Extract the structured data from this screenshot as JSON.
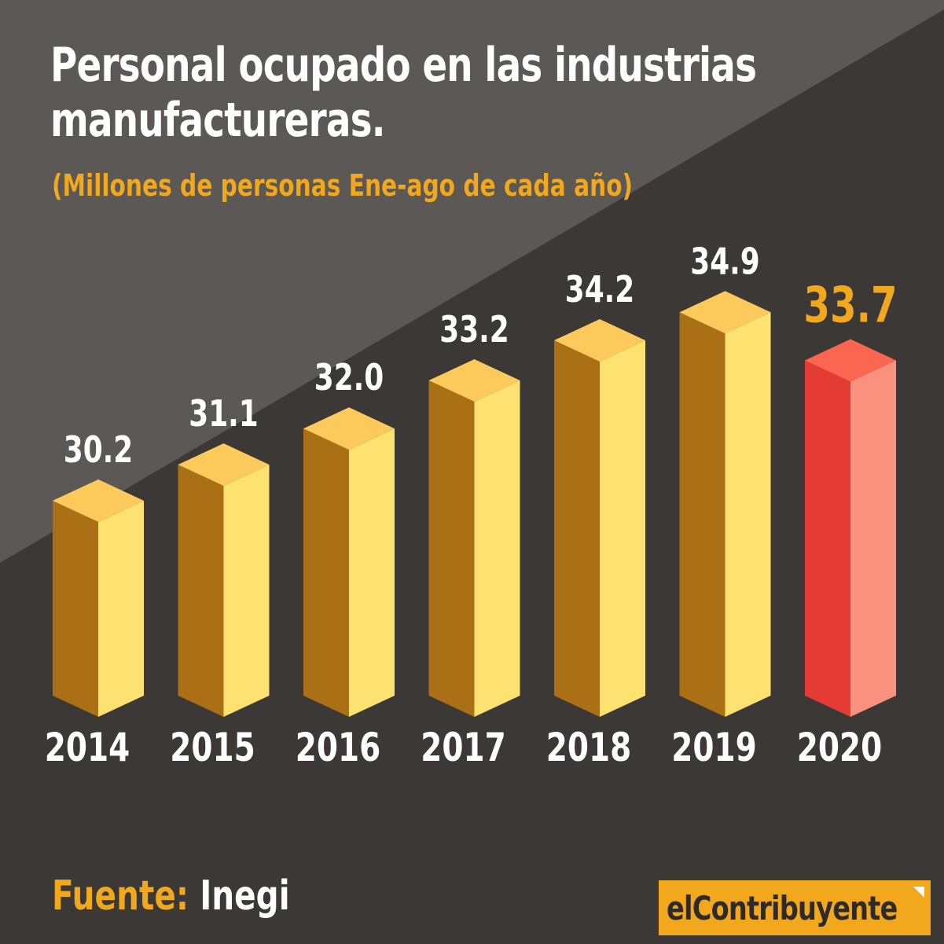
{
  "header": {
    "title_line1": "Personal ocupado en las industrias",
    "title_line2": "manufactureras.",
    "subtitle": "(Millones de personas Ene-ago de cada año)"
  },
  "footer": {
    "source_label": "Fuente:",
    "source_value": "Inegi",
    "logo_text": "elContribuyente"
  },
  "colors": {
    "background_dark": "#3c3836",
    "background_light": "#5c5856",
    "accent_orange": "#f2a81d",
    "bar_front": "#ab6f16",
    "bar_side": "#fde272",
    "bar_top": "#fcca5a",
    "highlight_front": "#e43c34",
    "highlight_side": "#f9917e",
    "highlight_top": "#fb6650",
    "text_white": "#ffffff"
  },
  "chart_data": {
    "type": "bar",
    "title": "Personal ocupado en las industrias manufactureras.",
    "subtitle": "(Millones de personas Ene-ago de cada año)",
    "categories": [
      "2014",
      "2015",
      "2016",
      "2017",
      "2018",
      "2019",
      "2020"
    ],
    "values": [
      30.2,
      31.1,
      32.0,
      33.2,
      34.2,
      34.9,
      33.7
    ],
    "value_labels": [
      "30.2",
      "31.1",
      "32.0",
      "33.2",
      "34.2",
      "34.9",
      "33.7"
    ],
    "highlight_index": 6,
    "style": "3d-bars",
    "grid": false,
    "legend": "none"
  }
}
